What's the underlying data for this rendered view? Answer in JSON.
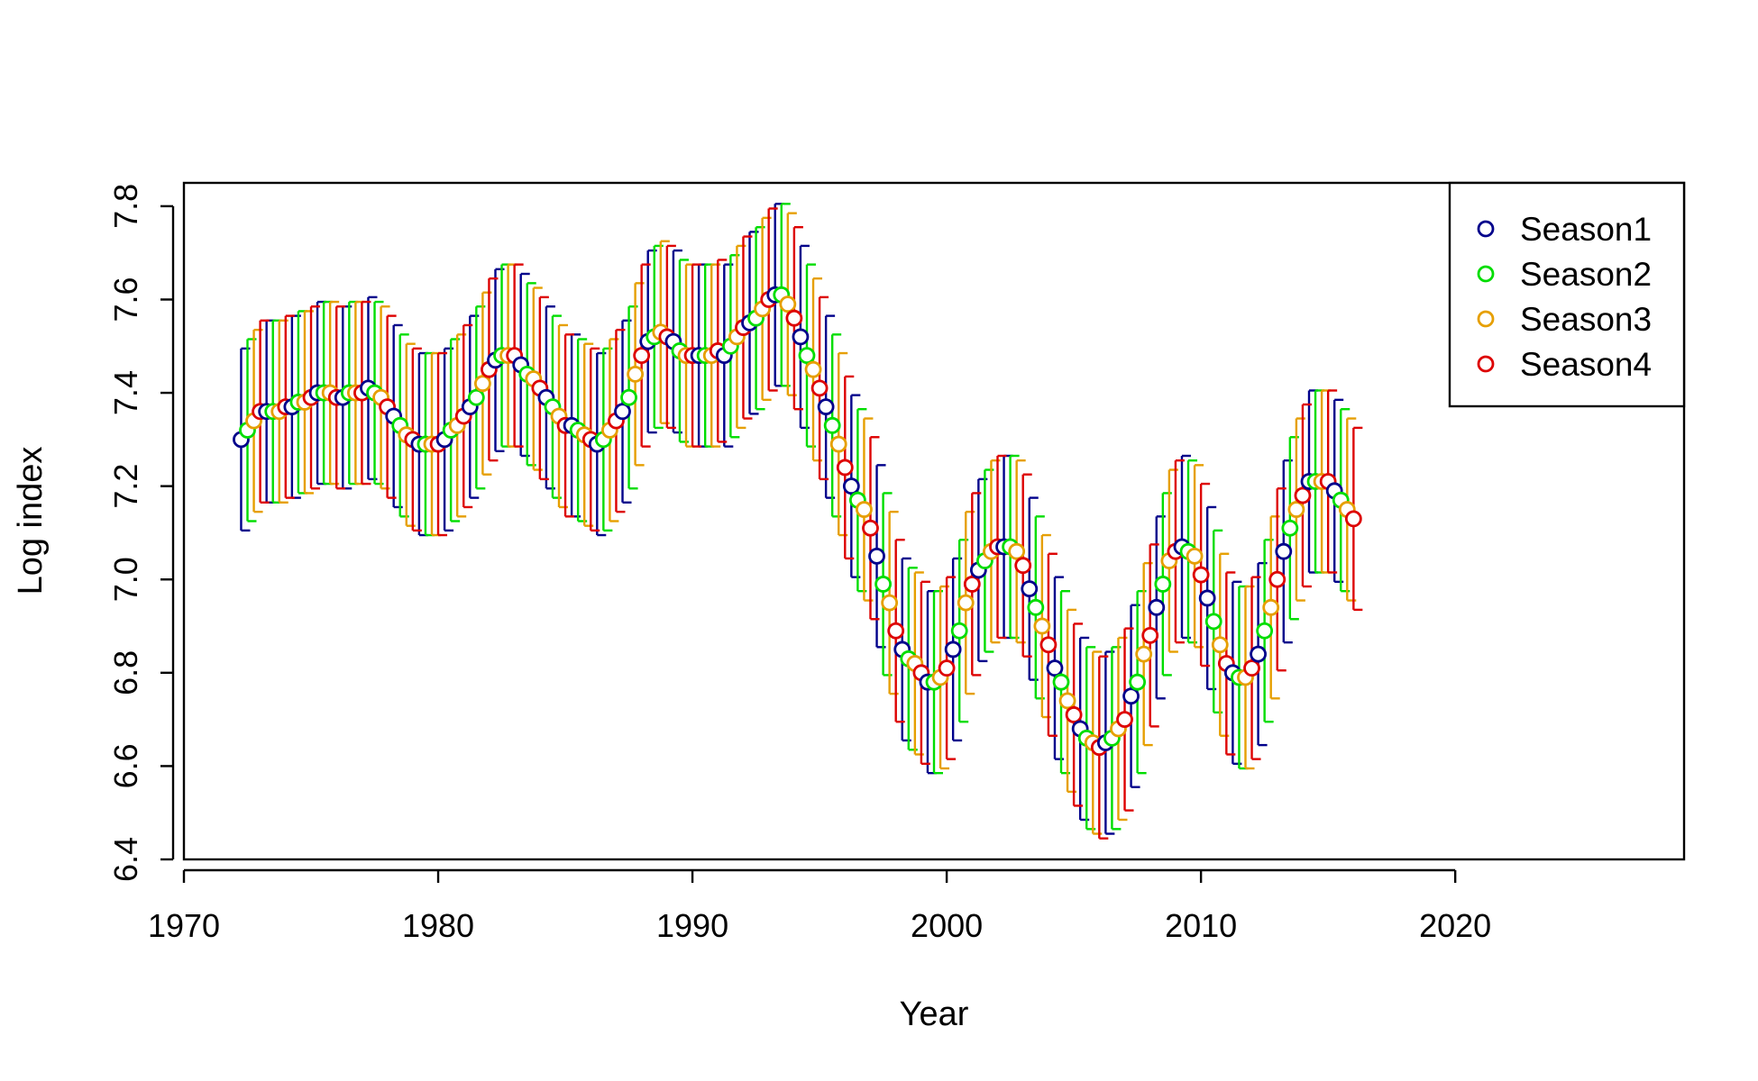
{
  "chart_data": {
    "type": "scatter",
    "xlabel": "Year",
    "ylabel": "Log index",
    "xlim": [
      1970,
      2029
    ],
    "ylim": [
      6.4,
      7.85
    ],
    "x_ticks": [
      "1970",
      "1980",
      "1990",
      "2000",
      "2010",
      "2020"
    ],
    "y_ticks": [
      "6.4",
      "6.6",
      "6.8",
      "7.0",
      "7.2",
      "7.4",
      "7.6",
      "7.8"
    ],
    "legend_position": "top-right",
    "interval_halfwidth": 0.195,
    "series": [
      {
        "name": "Season1",
        "color": "#00008b",
        "x": [
          1972.25,
          1973.25,
          1974.25,
          1975.25,
          1976.25,
          1977.25,
          1978.25,
          1979.25,
          1980.25,
          1981.25,
          1982.25,
          1983.25,
          1984.25,
          1985.25,
          1986.25,
          1987.25,
          1988.25,
          1989.25,
          1990.25,
          1991.25,
          1992.25,
          1993.25,
          1994.25,
          1995.25,
          1996.25,
          1997.25,
          1998.25,
          1999.25,
          2000.25,
          2001.25,
          2002.25,
          2003.25,
          2004.25,
          2005.25,
          2006.25,
          2007.25,
          2008.25,
          2009.25,
          2010.25,
          2011.25,
          2012.25,
          2013.25,
          2014.25,
          2015.25
        ],
        "y": [
          7.3,
          7.36,
          7.37,
          7.4,
          7.39,
          7.41,
          7.35,
          7.29,
          7.3,
          7.37,
          7.47,
          7.46,
          7.39,
          7.33,
          7.29,
          7.36,
          7.51,
          7.51,
          7.48,
          7.48,
          7.55,
          7.61,
          7.52,
          7.37,
          7.2,
          7.05,
          6.85,
          6.78,
          6.85,
          7.02,
          7.07,
          6.98,
          6.81,
          6.68,
          6.65,
          6.75,
          6.94,
          7.07,
          6.96,
          6.8,
          6.84,
          7.06,
          7.21,
          7.19
        ]
      },
      {
        "name": "Season2",
        "color": "#00dd00",
        "x": [
          1972.5,
          1973.5,
          1974.5,
          1975.5,
          1976.5,
          1977.5,
          1978.5,
          1979.5,
          1980.5,
          1981.5,
          1982.5,
          1983.5,
          1984.5,
          1985.5,
          1986.5,
          1987.5,
          1988.5,
          1989.5,
          1990.5,
          1991.5,
          1992.5,
          1993.5,
          1994.5,
          1995.5,
          1996.5,
          1997.5,
          1998.5,
          1999.5,
          2000.5,
          2001.5,
          2002.5,
          2003.5,
          2004.5,
          2005.5,
          2006.5,
          2007.5,
          2008.5,
          2009.5,
          2010.5,
          2011.5,
          2012.5,
          2013.5,
          2014.5,
          2015.5
        ],
        "y": [
          7.32,
          7.36,
          7.38,
          7.4,
          7.4,
          7.4,
          7.33,
          7.29,
          7.32,
          7.39,
          7.48,
          7.44,
          7.37,
          7.32,
          7.3,
          7.39,
          7.52,
          7.49,
          7.48,
          7.5,
          7.56,
          7.61,
          7.48,
          7.33,
          7.17,
          6.99,
          6.83,
          6.78,
          6.89,
          7.04,
          7.07,
          6.94,
          6.78,
          6.66,
          6.66,
          6.78,
          6.99,
          7.06,
          6.91,
          6.79,
          6.89,
          7.11,
          7.21,
          7.17
        ]
      },
      {
        "name": "Season3",
        "color": "#e69f00",
        "x": [
          1972.75,
          1973.75,
          1974.75,
          1975.75,
          1976.75,
          1977.75,
          1978.75,
          1979.75,
          1980.75,
          1981.75,
          1982.75,
          1983.75,
          1984.75,
          1985.75,
          1986.75,
          1987.75,
          1988.75,
          1989.75,
          1990.75,
          1991.75,
          1992.75,
          1993.75,
          1994.75,
          1995.75,
          1996.75,
          1997.75,
          1998.75,
          1999.75,
          2000.75,
          2001.75,
          2002.75,
          2003.75,
          2004.75,
          2005.75,
          2006.75,
          2007.75,
          2008.75,
          2009.75,
          2010.75,
          2011.75,
          2012.75,
          2013.75,
          2014.75,
          2015.75
        ],
        "y": [
          7.34,
          7.36,
          7.38,
          7.4,
          7.4,
          7.39,
          7.31,
          7.29,
          7.33,
          7.42,
          7.48,
          7.43,
          7.35,
          7.31,
          7.32,
          7.44,
          7.53,
          7.48,
          7.48,
          7.52,
          7.58,
          7.59,
          7.45,
          7.29,
          7.15,
          6.95,
          6.82,
          6.79,
          6.95,
          7.06,
          7.06,
          6.9,
          6.74,
          6.65,
          6.68,
          6.84,
          7.04,
          7.05,
          6.86,
          6.79,
          6.94,
          7.15,
          7.21,
          7.15
        ]
      },
      {
        "name": "Season4",
        "color": "#dd0000",
        "x": [
          1973.0,
          1974.0,
          1975.0,
          1976.0,
          1977.0,
          1978.0,
          1979.0,
          1980.0,
          1981.0,
          1982.0,
          1983.0,
          1984.0,
          1985.0,
          1986.0,
          1987.0,
          1988.0,
          1989.0,
          1990.0,
          1991.0,
          1992.0,
          1993.0,
          1994.0,
          1995.0,
          1996.0,
          1997.0,
          1998.0,
          1999.0,
          2000.0,
          2001.0,
          2002.0,
          2003.0,
          2004.0,
          2005.0,
          2006.0,
          2007.0,
          2008.0,
          2009.0,
          2010.0,
          2011.0,
          2012.0,
          2013.0,
          2014.0,
          2015.0,
          2016.0
        ],
        "y": [
          7.36,
          7.37,
          7.39,
          7.39,
          7.4,
          7.37,
          7.3,
          7.29,
          7.35,
          7.45,
          7.48,
          7.41,
          7.33,
          7.3,
          7.34,
          7.48,
          7.52,
          7.48,
          7.49,
          7.54,
          7.6,
          7.56,
          7.41,
          7.24,
          7.11,
          6.89,
          6.8,
          6.81,
          6.99,
          7.07,
          7.03,
          6.86,
          6.71,
          6.64,
          6.7,
          6.88,
          7.06,
          7.01,
          6.82,
          6.81,
          7.0,
          7.18,
          7.21,
          7.13
        ]
      }
    ]
  }
}
